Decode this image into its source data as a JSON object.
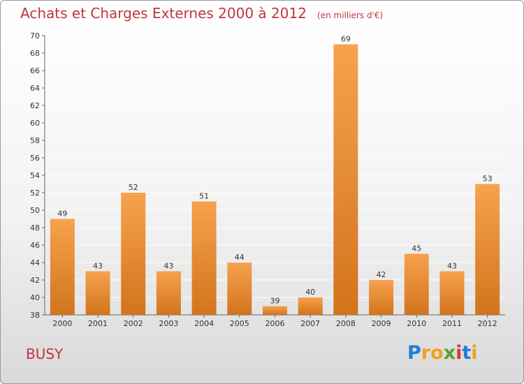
{
  "header": {
    "title": "Achats et Charges Externes 2000 à 2012",
    "unit": "(en milliers d'€)"
  },
  "commune": "BUSY",
  "logo": {
    "text": "Proxiti",
    "letters": [
      {
        "char": "P",
        "color": "#1f7ed4"
      },
      {
        "char": "r",
        "color": "#f0a020"
      },
      {
        "char": "o",
        "color": "#f0a020"
      },
      {
        "char": "x",
        "color": "#5aa02c"
      },
      {
        "char": "i",
        "color": "#d63a3a"
      },
      {
        "char": "t",
        "color": "#1f7ed4"
      },
      {
        "char": "i",
        "color": "#f0a020"
      }
    ]
  },
  "colors": {
    "bar_top": "#f7a24e",
    "bar_bottom": "#d2741c",
    "title": "#c0363f",
    "grid": "#ffffff",
    "axis": "#666666"
  },
  "chart_data": {
    "type": "bar",
    "title": "Achats et Charges Externes 2000 à 2012",
    "subtitle": "(en milliers d'€)",
    "xlabel": "",
    "ylabel": "",
    "categories": [
      "2000",
      "2001",
      "2002",
      "2003",
      "2004",
      "2005",
      "2006",
      "2007",
      "2008",
      "2009",
      "2010",
      "2011",
      "2012"
    ],
    "values": [
      49,
      43,
      52,
      43,
      51,
      44,
      39,
      40,
      69,
      42,
      45,
      43,
      53
    ],
    "ylim": [
      38,
      70
    ],
    "yticks": [
      38,
      40,
      42,
      44,
      46,
      48,
      50,
      52,
      54,
      56,
      58,
      60,
      62,
      64,
      66,
      68,
      70
    ],
    "grid": true,
    "data_labels": true
  }
}
